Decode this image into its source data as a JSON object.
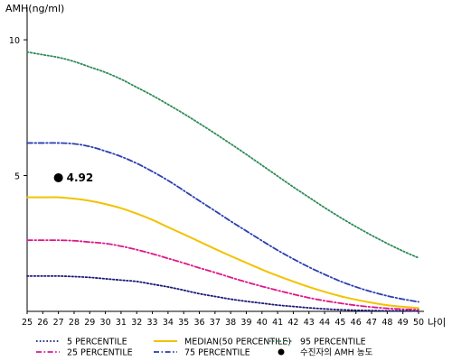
{
  "chart_data": {
    "type": "line",
    "ylabel": "AMH(ng/ml)",
    "xlabel": "나이",
    "x": [
      25,
      26,
      27,
      28,
      29,
      30,
      31,
      32,
      33,
      34,
      35,
      36,
      37,
      38,
      39,
      40,
      41,
      42,
      43,
      44,
      45,
      46,
      47,
      48,
      49,
      50
    ],
    "xlim": [
      25,
      50
    ],
    "ylim": [
      0,
      11
    ],
    "yticks": [
      5,
      10
    ],
    "grid": false,
    "legend_position": "bottom",
    "series": [
      {
        "name": "5 PERCENTILE",
        "color": "#1a1a7a",
        "dash": "dotted",
        "values": [
          1.3,
          1.3,
          1.3,
          1.28,
          1.25,
          1.2,
          1.15,
          1.1,
          1.0,
          0.9,
          0.78,
          0.65,
          0.55,
          0.45,
          0.37,
          0.3,
          0.23,
          0.18,
          0.13,
          0.09,
          0.06,
          0.04,
          0.03,
          0.02,
          0.02,
          0.01
        ]
      },
      {
        "name": "25 PERCENTILE",
        "color": "#e0168a",
        "dash": "dashdot",
        "values": [
          2.62,
          2.62,
          2.62,
          2.6,
          2.55,
          2.5,
          2.4,
          2.27,
          2.12,
          1.95,
          1.78,
          1.6,
          1.43,
          1.25,
          1.08,
          0.92,
          0.77,
          0.63,
          0.5,
          0.39,
          0.3,
          0.22,
          0.16,
          0.11,
          0.08,
          0.06
        ]
      },
      {
        "name": "MEDIAN(50 PERCENTILE)",
        "color": "#f2c200",
        "dash": "solid",
        "values": [
          4.2,
          4.2,
          4.2,
          4.15,
          4.07,
          3.95,
          3.8,
          3.6,
          3.37,
          3.1,
          2.84,
          2.57,
          2.3,
          2.04,
          1.79,
          1.54,
          1.31,
          1.1,
          0.9,
          0.72,
          0.56,
          0.43,
          0.32,
          0.23,
          0.17,
          0.12
        ]
      },
      {
        "name": "75 PERCENTILE",
        "color": "#2a3fb0",
        "dash": "dashdot",
        "values": [
          6.2,
          6.2,
          6.2,
          6.17,
          6.07,
          5.9,
          5.7,
          5.45,
          5.15,
          4.82,
          4.45,
          4.07,
          3.7,
          3.32,
          2.96,
          2.6,
          2.25,
          1.93,
          1.63,
          1.36,
          1.11,
          0.9,
          0.72,
          0.57,
          0.45,
          0.35
        ]
      },
      {
        "name": "95 PERCENTILE",
        "color": "#2e8b57",
        "dash": "dotted",
        "values": [
          9.55,
          9.45,
          9.35,
          9.2,
          9.0,
          8.8,
          8.55,
          8.25,
          7.95,
          7.62,
          7.28,
          6.92,
          6.55,
          6.17,
          5.78,
          5.38,
          4.98,
          4.58,
          4.2,
          3.82,
          3.46,
          3.12,
          2.8,
          2.5,
          2.22,
          1.97
        ]
      }
    ],
    "patient_point": {
      "name": "수진자의 AMH 농도",
      "x": 27,
      "y": 4.92,
      "label": "4.92",
      "color": "#000000"
    },
    "legend_order": [
      "5 PERCENTILE",
      "25 PERCENTILE",
      "MEDIAN(50 PERCENTILE)",
      "75 PERCENTILE",
      "95 PERCENTILE",
      "수진자의 AMH 농도"
    ]
  }
}
